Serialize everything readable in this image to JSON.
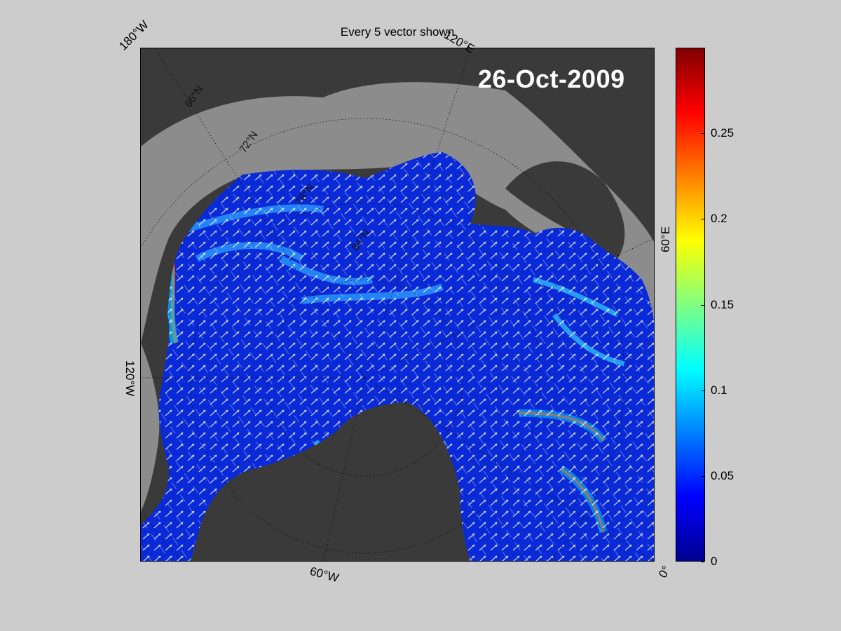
{
  "title": "Every 5 vector shown",
  "date": "26-Oct-2009",
  "longitude_labels": {
    "lon_180w": "180°W",
    "lon_120e": "120°E",
    "lon_60e": "60°E",
    "lon_120w": "120°W",
    "lon_60w": "60°W",
    "lon_0": "0°"
  },
  "latitude_labels": [
    "66°N",
    "72°N",
    "78°N",
    "84°N"
  ],
  "colorbar": {
    "colormap": "jet",
    "range": [
      0,
      0.3
    ],
    "ticks": [
      "0",
      "0.05",
      "0.1",
      "0.15",
      "0.2",
      "0.25"
    ]
  },
  "colors": {
    "background": "#cccccc",
    "land": "#3a3a3a",
    "open_ocean": "#8c8c8c",
    "ice_field": "#0a2ad8",
    "vectors": "#ffffff",
    "graticule": "#000000"
  },
  "vector_sampling": 5
}
